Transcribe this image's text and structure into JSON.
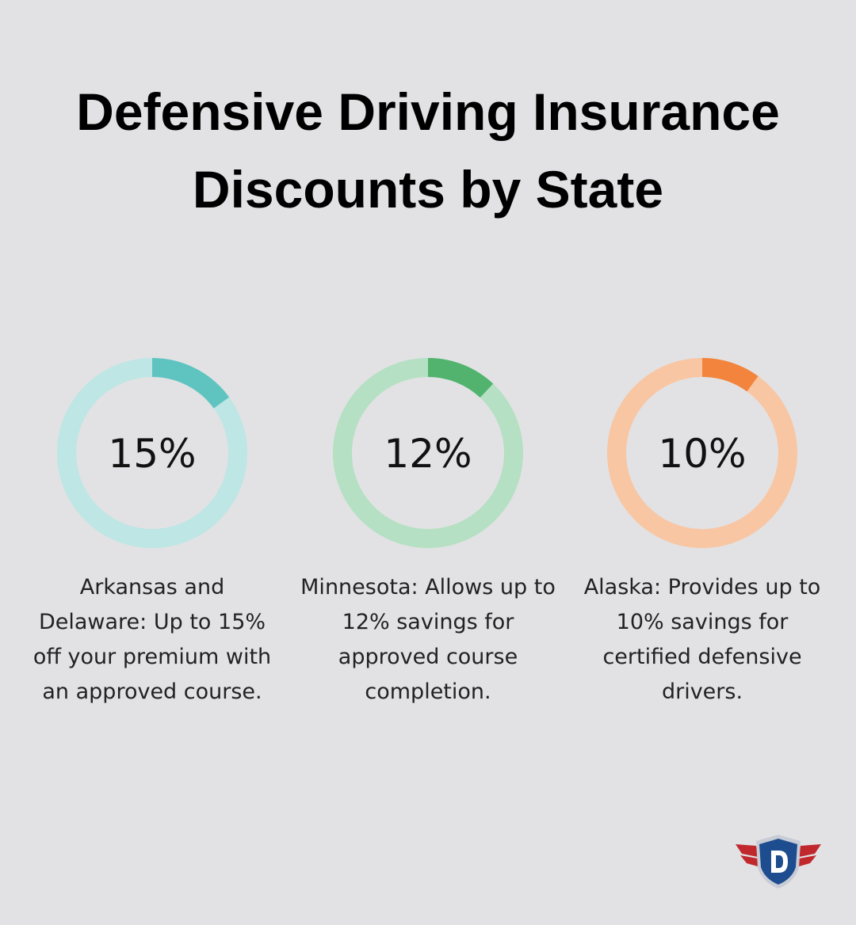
{
  "title": "Defensive Driving Insurance Discounts by State",
  "chart_data": [
    {
      "type": "donut",
      "values": [
        15
      ],
      "value_labels": [
        "15%"
      ],
      "ylim": [
        0,
        100
      ],
      "color": "#5fc4c0",
      "track_color": "#bde6e4",
      "description": "Arkansas and Delaware: Up to 15% off your premium with an approved course."
    },
    {
      "type": "donut",
      "values": [
        12
      ],
      "value_labels": [
        "12%"
      ],
      "ylim": [
        0,
        100
      ],
      "color": "#52b36e",
      "track_color": "#b5e0c3",
      "description": "Minnesota: Allows up to 12% savings for approved course completion."
    },
    {
      "type": "donut",
      "values": [
        10
      ],
      "value_labels": [
        "10%"
      ],
      "ylim": [
        0,
        100
      ],
      "color": "#f3843d",
      "track_color": "#f8c6a3",
      "description": "Alaska: Provides up to 10% savings for certified defensive drivers."
    }
  ]
}
